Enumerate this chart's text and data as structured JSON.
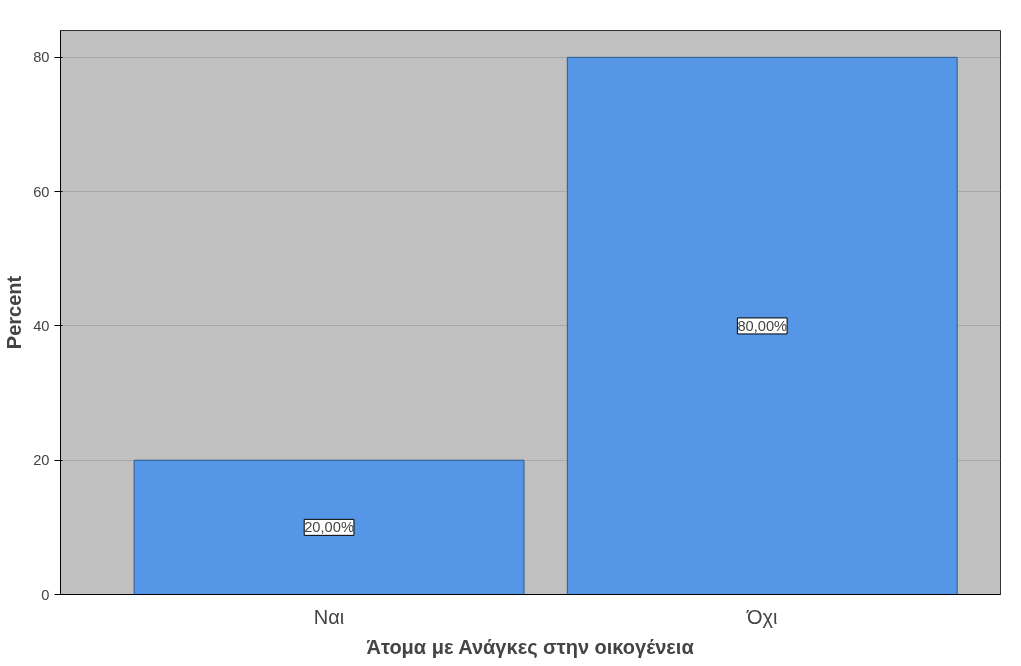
{
  "chart_data": {
    "type": "bar",
    "xlabel": "Άτομα με Ανάγκες στην οικογένεια",
    "ylabel": "Percent",
    "categories": [
      "Ναι",
      "Όχι"
    ],
    "values": [
      20,
      80
    ],
    "color": "#5596e6",
    "value_labels": [
      "20,00%",
      "80,00%"
    ],
    "ylim": [
      0,
      84
    ],
    "yticks": [
      0,
      20,
      40,
      60,
      80
    ],
    "grid": "y"
  }
}
